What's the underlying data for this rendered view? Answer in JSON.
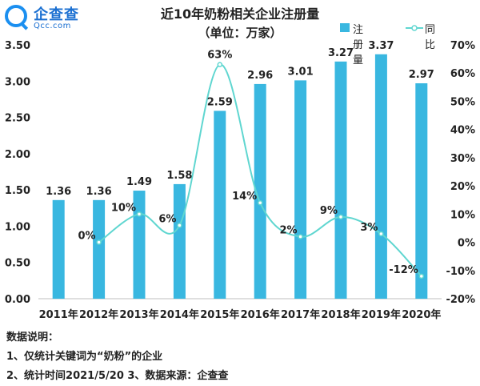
{
  "logo": {
    "name": "企查查",
    "sub": "Qcc.com"
  },
  "chart_data": {
    "type": "bar+line",
    "title": "近10年奶粉相关企业注册量",
    "subtitle": "（单位：万家）",
    "categories": [
      "2011年",
      "2012年",
      "2013年",
      "2014年",
      "2015年",
      "2016年",
      "2017年",
      "2018年",
      "2019年",
      "2020年"
    ],
    "series": [
      {
        "name": "注册量",
        "type": "bar",
        "axis": "left",
        "color": "#39b7e0",
        "values": [
          1.36,
          1.36,
          1.49,
          1.58,
          2.59,
          2.96,
          3.01,
          3.27,
          3.37,
          2.97
        ],
        "labels": [
          "1.36",
          "1.36",
          "1.49",
          "1.58",
          "2.59",
          "2.96",
          "3.01",
          "3.27",
          "3.37",
          "2.97"
        ]
      },
      {
        "name": "同比",
        "type": "line",
        "axis": "right",
        "color": "#5fd6d0",
        "smooth": true,
        "values": [
          null,
          0,
          10,
          6,
          63,
          14,
          2,
          9,
          3,
          -12
        ],
        "labels": [
          null,
          "0%",
          "10%",
          "6%",
          "63%",
          "14%",
          "2%",
          "9%",
          "3%",
          "-12%"
        ]
      }
    ],
    "y_left": {
      "min": 0,
      "max": 3.5,
      "ticks": [
        "0.00",
        "0.50",
        "1.00",
        "1.50",
        "2.00",
        "2.50",
        "3.00",
        "3.50"
      ]
    },
    "y_right": {
      "min": -20,
      "max": 70,
      "ticks": [
        "-20%",
        "-10%",
        "0%",
        "10%",
        "20%",
        "30%",
        "40%",
        "50%",
        "60%",
        "70%"
      ]
    },
    "grid": false,
    "legend": "top-right"
  },
  "notes": [
    "数据说明：",
    "1、仅统计关键词为“奶粉”的企业",
    "2、统计时间2021/5/20   3、数据来源：企查查"
  ]
}
